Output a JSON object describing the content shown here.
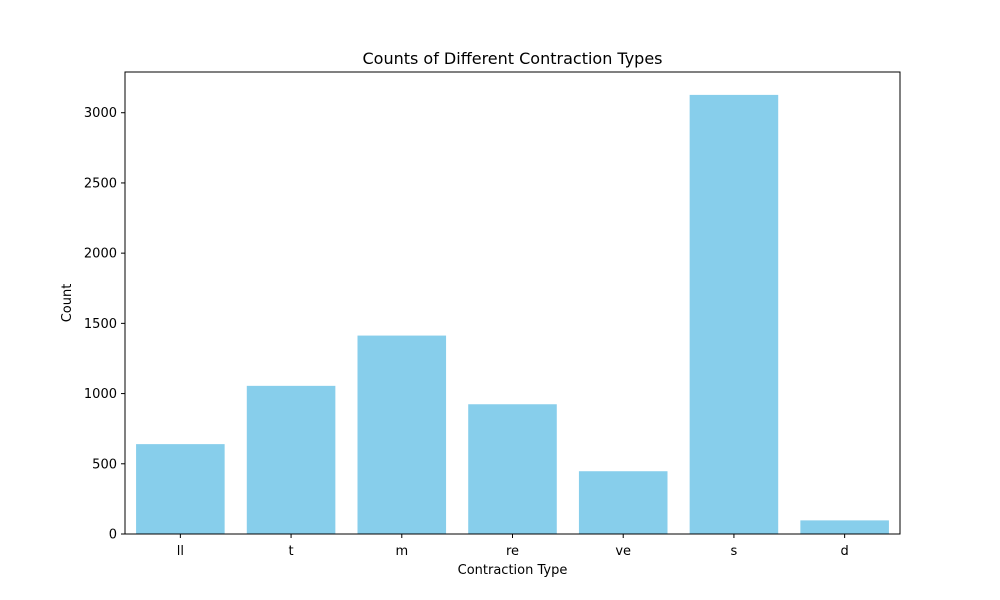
{
  "chart_data": {
    "type": "bar",
    "title": "Counts of Different Contraction Types",
    "xlabel": "Contraction Type",
    "ylabel": "Count",
    "categories": [
      "ll",
      "t",
      "m",
      "re",
      "ve",
      "s",
      "d"
    ],
    "values": [
      640,
      1055,
      1413,
      924,
      447,
      3127,
      97
    ],
    "ylim": [
      0,
      3290
    ],
    "yticks": [
      0,
      500,
      1000,
      1500,
      2000,
      2500,
      3000
    ],
    "grid": false,
    "bar_color": "#87ceeb"
  }
}
